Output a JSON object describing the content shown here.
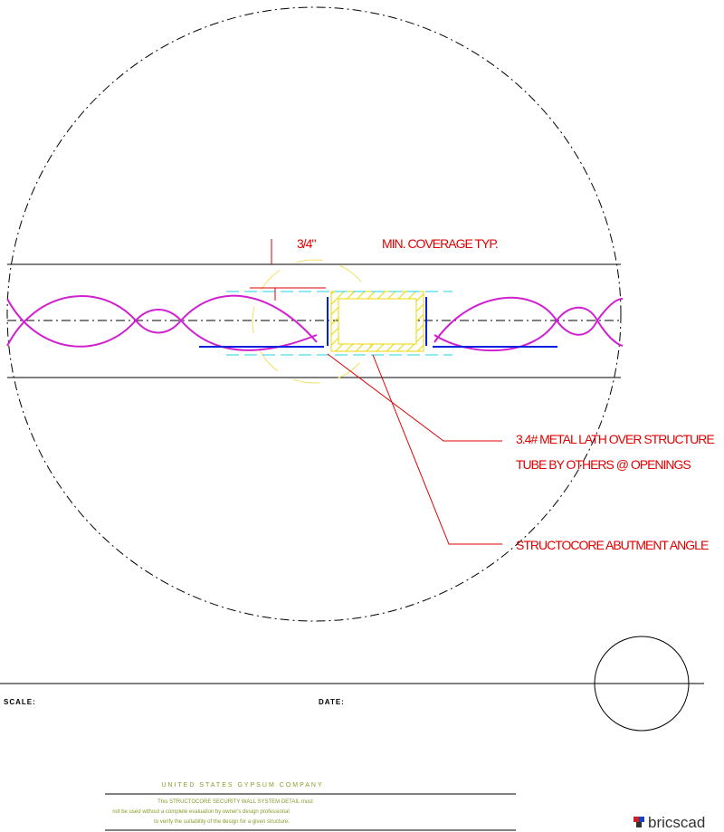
{
  "drawing": {
    "dimension": "3/4\"",
    "coverage_note": "MIN. COVERAGE TYP.",
    "lath_note": [
      "3.4# METAL LATH OVER STRUCTURE",
      "TUBE BY OTHERS @ OPENINGS"
    ],
    "angle_note": "STRUCTOCORE ABUTMENT ANGLE"
  },
  "title_block": {
    "scale_label": "SCALE:",
    "date_label": "DATE:",
    "company": "UNITED STATES GYPSUM COMPANY",
    "disclaimer": [
      "This STRUCTOCORE SECURITY WALL SYSTEM DETAIL must",
      "not be used without a complete evaluation by owner's design professional",
      "to verify the suitability of the design for a given structure."
    ],
    "brand": "bricscad"
  }
}
